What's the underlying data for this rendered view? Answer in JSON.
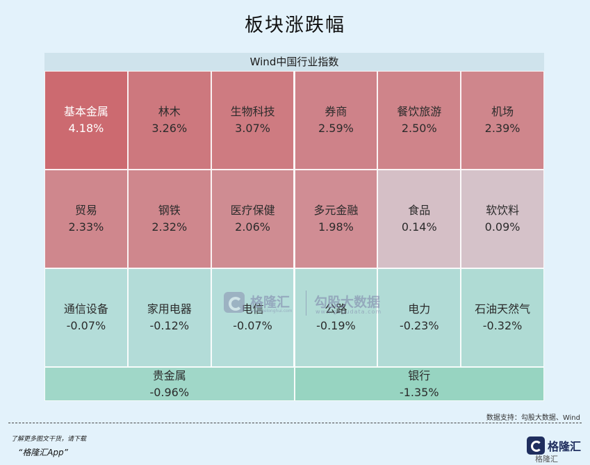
{
  "title": "板块涨跌幅",
  "panel_header": "Wind中国行业指数",
  "chart_data": {
    "type": "heatmap",
    "title": "板块涨跌幅",
    "group": "Wind中国行业指数",
    "unit": "%",
    "cells": [
      {
        "name": "基本金属",
        "value": 4.18,
        "label": "4.18%"
      },
      {
        "name": "林木",
        "value": 3.26,
        "label": "3.26%"
      },
      {
        "name": "生物科技",
        "value": 3.07,
        "label": "3.07%"
      },
      {
        "name": "券商",
        "value": 2.59,
        "label": "2.59%"
      },
      {
        "name": "餐饮旅游",
        "value": 2.5,
        "label": "2.50%"
      },
      {
        "name": "机场",
        "value": 2.39,
        "label": "2.39%"
      },
      {
        "name": "贸易",
        "value": 2.33,
        "label": "2.33%"
      },
      {
        "name": "钢铁",
        "value": 2.32,
        "label": "2.32%"
      },
      {
        "name": "医疗保健",
        "value": 2.06,
        "label": "2.06%"
      },
      {
        "name": "多元金融",
        "value": 1.98,
        "label": "1.98%"
      },
      {
        "name": "食品",
        "value": 0.14,
        "label": "0.14%"
      },
      {
        "name": "软饮料",
        "value": 0.09,
        "label": "0.09%"
      },
      {
        "name": "通信设备",
        "value": -0.07,
        "label": "-0.07%"
      },
      {
        "name": "家用电器",
        "value": -0.12,
        "label": "-0.12%"
      },
      {
        "name": "电信",
        "value": -0.07,
        "label": "-0.07%"
      },
      {
        "name": "公路",
        "value": -0.19,
        "label": "-0.19%"
      },
      {
        "name": "电力",
        "value": -0.23,
        "label": "-0.23%"
      },
      {
        "name": "石油天然气",
        "value": -0.32,
        "label": "-0.32%"
      },
      {
        "name": "贵金属",
        "value": -0.96,
        "label": "-0.96%"
      },
      {
        "name": "银行",
        "value": -1.35,
        "label": "-1.35%"
      }
    ],
    "colors": {
      "positive_max": "#cc6a70",
      "positive_min": "#d6ccd3",
      "negative_min": "#b6ddda",
      "negative_max": "#97d4c1"
    }
  },
  "watermark": {
    "left_name": "格隆汇",
    "left_url": "www.gelonghui.com",
    "right_name": "勾股大数据",
    "right_url": "www.gogudata.com"
  },
  "source": "数据支持：勾股大数据、Wind",
  "footer": {
    "line1": "了解更多图文干货，请下载",
    "line2": "“格隆汇App”"
  },
  "brand": {
    "name": "格隆汇",
    "side_text": "格隆汇"
  }
}
